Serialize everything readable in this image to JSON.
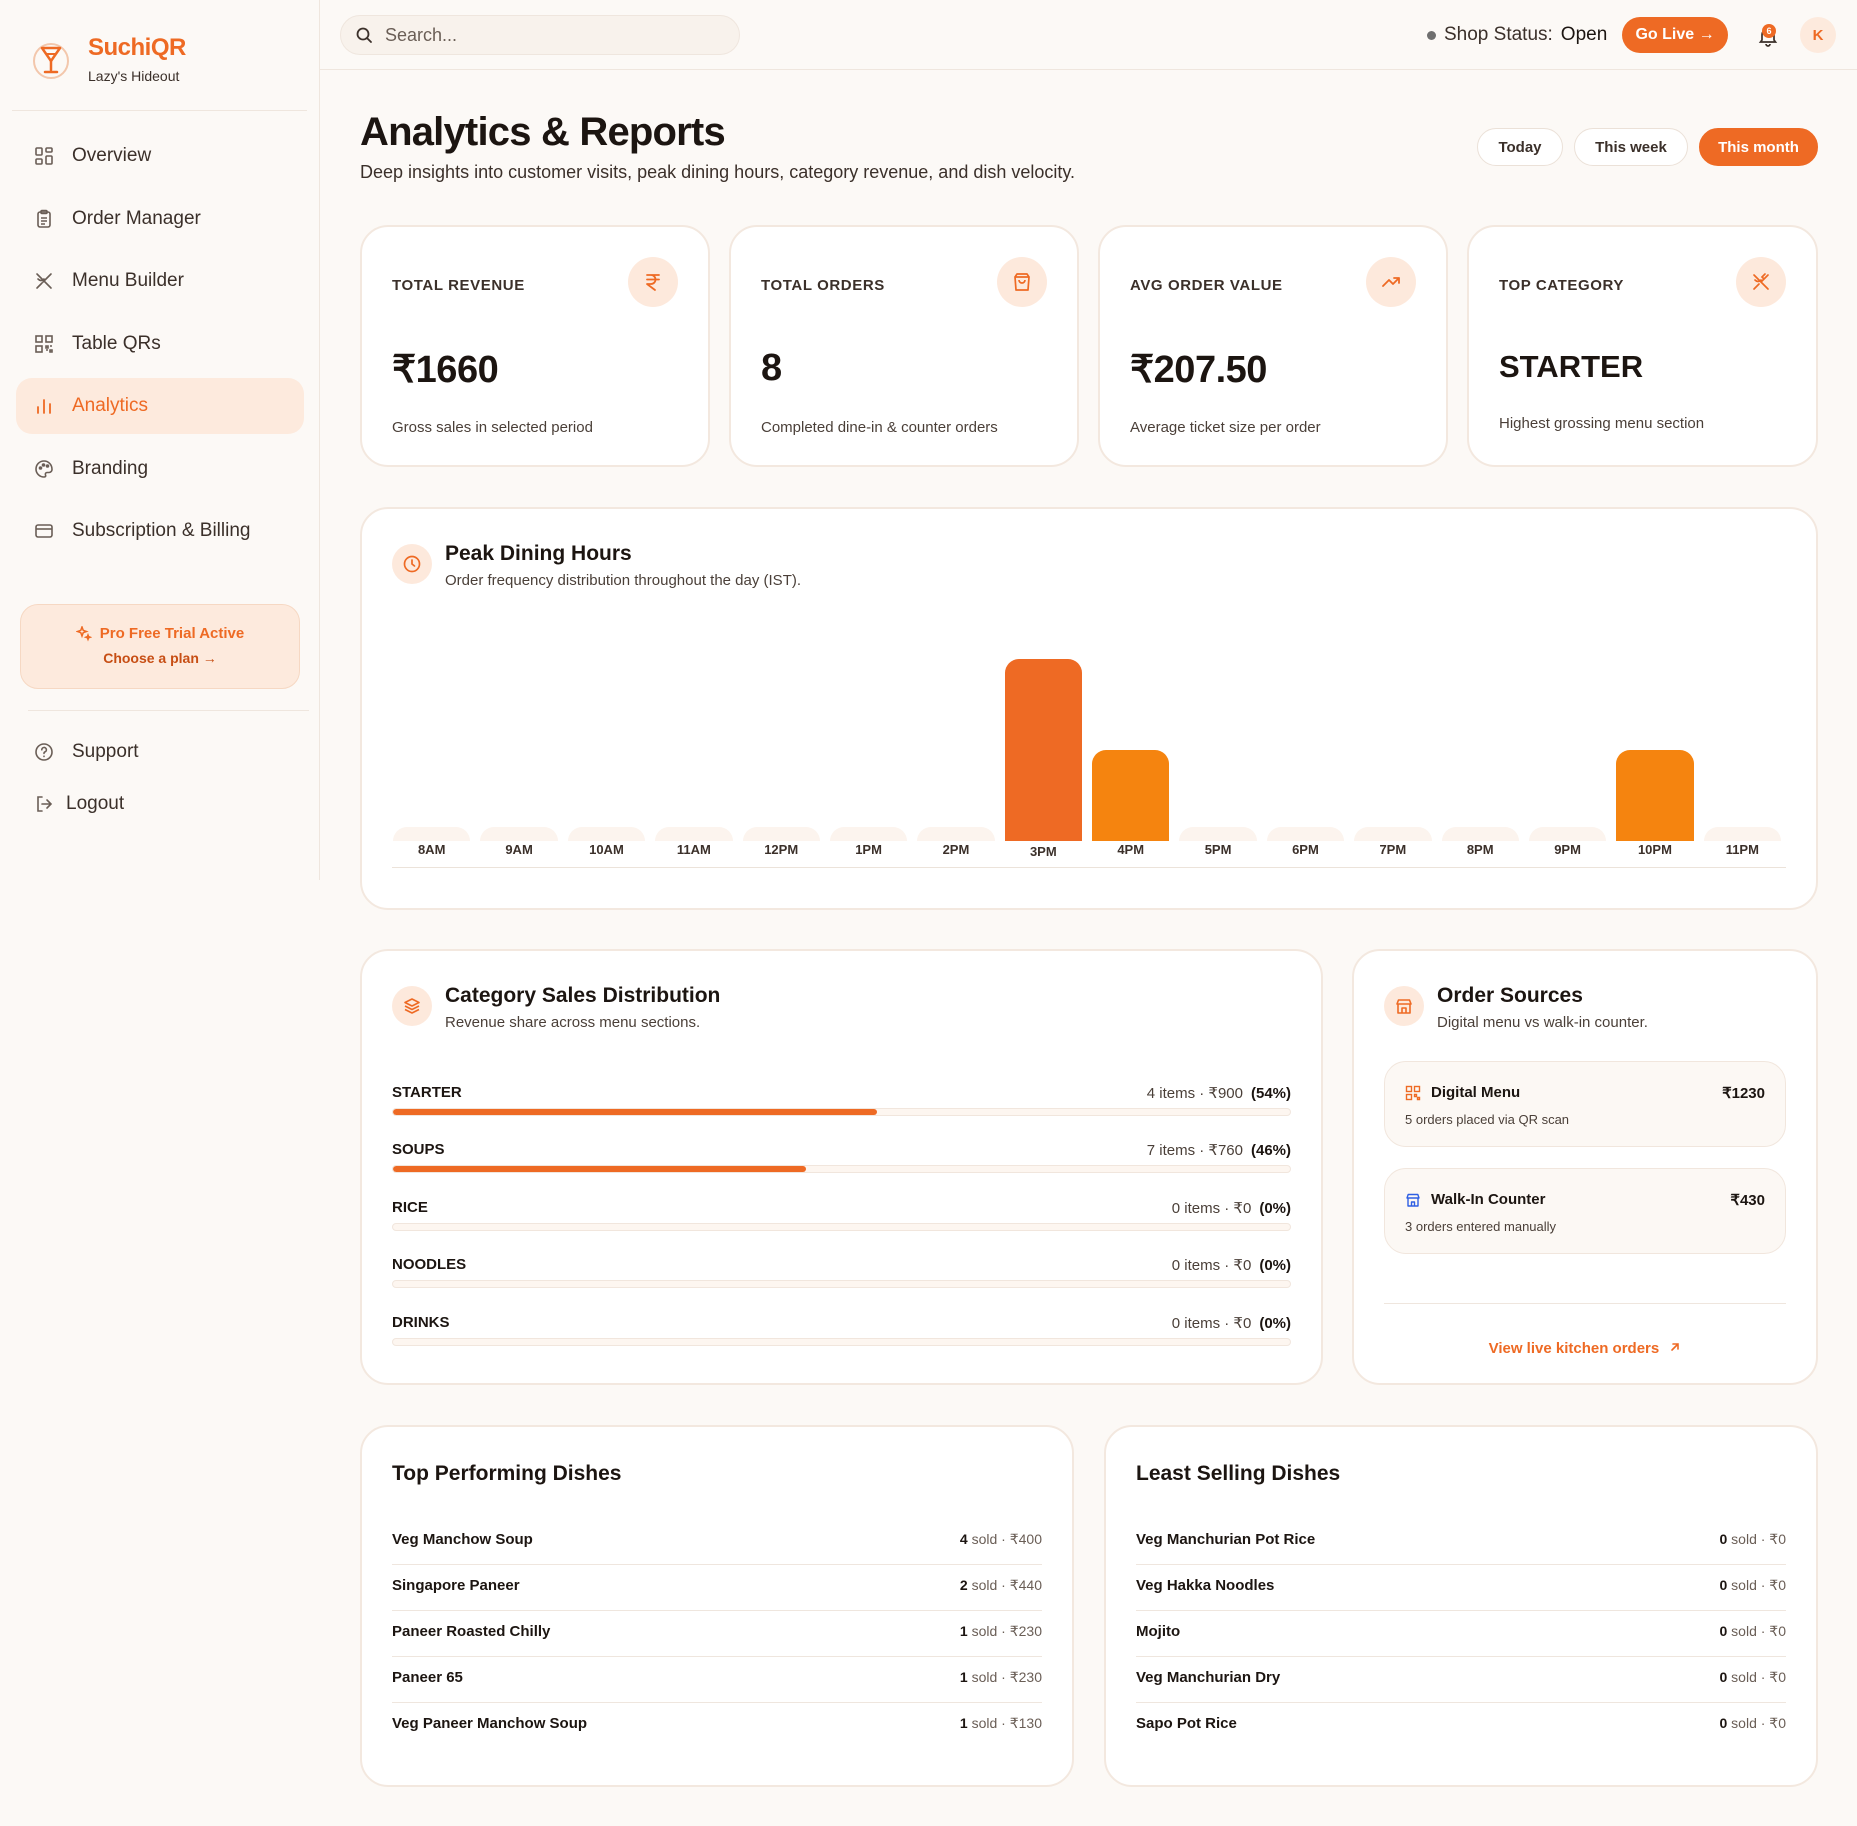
{
  "brand": {
    "name": "SuchiQR",
    "restaurant": "Lazy's Hideout"
  },
  "sidebar": {
    "items": [
      {
        "label": "Overview",
        "icon": "grid-icon"
      },
      {
        "label": "Order Manager",
        "icon": "clipboard-icon"
      },
      {
        "label": "Menu Builder",
        "icon": "utensils-icon"
      },
      {
        "label": "Table QRs",
        "icon": "qr-icon"
      },
      {
        "label": "Analytics",
        "icon": "bar-chart-icon",
        "active": true
      },
      {
        "label": "Branding",
        "icon": "palette-icon"
      },
      {
        "label": "Subscription & Billing",
        "icon": "credit-card-icon"
      }
    ],
    "trial": {
      "title": "Pro Free Trial Active",
      "cta": "Choose a plan →"
    },
    "bottom": [
      {
        "label": "Support",
        "icon": "help-circle-icon"
      },
      {
        "label": "Logout",
        "icon": "logout-icon"
      }
    ]
  },
  "topbar": {
    "search_placeholder": "Search...",
    "shop_status_label": "Shop Status:",
    "shop_status_value": "Open",
    "go_live": "Go Live →",
    "notification_count": "6",
    "avatar_initial": "K"
  },
  "header": {
    "title": "Analytics & Reports",
    "subtitle": "Deep insights into customer visits, peak dining hours, category revenue, and dish velocity.",
    "periods": [
      "Today",
      "This week",
      "This month"
    ],
    "active_period": "This month"
  },
  "stats": [
    {
      "label": "TOTAL REVENUE",
      "value": "₹1660",
      "sub": "Gross sales in selected period",
      "icon": "rupee-icon"
    },
    {
      "label": "TOTAL ORDERS",
      "value": "8",
      "sub": "Completed dine-in & counter orders",
      "icon": "shopping-bag-icon"
    },
    {
      "label": "AVG ORDER VALUE",
      "value": "₹207.50",
      "sub": "Average ticket size per order",
      "icon": "trending-up-icon"
    },
    {
      "label": "TOP CATEGORY",
      "value": "STARTER",
      "sub": "Highest grossing menu section",
      "icon": "utensils-crossed-icon"
    }
  ],
  "peak_hours": {
    "title": "Peak Dining Hours",
    "subtitle": "Order frequency distribution throughout the day (IST).",
    "colors": {
      "peak": "#ee6a24",
      "normal": "#f5840f",
      "empty": "#fcf4ee"
    }
  },
  "chart_data": {
    "type": "bar",
    "categories": [
      "8AM",
      "9AM",
      "10AM",
      "11AM",
      "12PM",
      "1PM",
      "2PM",
      "3PM",
      "4PM",
      "5PM",
      "6PM",
      "7PM",
      "8PM",
      "9PM",
      "10PM",
      "11PM"
    ],
    "values": [
      0,
      0,
      0,
      0,
      0,
      0,
      0,
      4,
      2,
      0,
      0,
      0,
      0,
      0,
      2,
      0
    ],
    "peak_category": "3PM",
    "ylim": [
      0,
      4
    ],
    "grid": false,
    "legend": "none"
  },
  "category_sales": {
    "title": "Category Sales Distribution",
    "subtitle": "Revenue share across menu sections.",
    "rows": [
      {
        "name": "STARTER",
        "meta": "4 items · ₹900",
        "pct_label": "(54%)",
        "pct": 54
      },
      {
        "name": "SOUPS",
        "meta": "7 items · ₹760",
        "pct_label": "(46%)",
        "pct": 46
      },
      {
        "name": "RICE",
        "meta": "0 items · ₹0",
        "pct_label": "(0%)",
        "pct": 0
      },
      {
        "name": "NOODLES",
        "meta": "0 items · ₹0",
        "pct_label": "(0%)",
        "pct": 0
      },
      {
        "name": "DRINKS",
        "meta": "0 items · ₹0",
        "pct_label": "(0%)",
        "pct": 0
      }
    ]
  },
  "order_sources": {
    "title": "Order Sources",
    "subtitle": "Digital menu vs walk-in counter.",
    "items": [
      {
        "name": "Digital Menu",
        "value": "₹1230",
        "sub": "5 orders placed via QR scan",
        "icon": "qr-icon",
        "icon_color": "#ee6a24"
      },
      {
        "name": "Walk-In Counter",
        "value": "₹430",
        "sub": "3 orders entered manually",
        "icon": "store-icon",
        "icon_color": "#2f5fe3"
      }
    ],
    "link": "View live kitchen orders"
  },
  "top_dishes": {
    "title": "Top Performing Dishes",
    "rows": [
      {
        "name": "Veg Manchow Soup",
        "sold": "4",
        "meta": " sold · ₹400"
      },
      {
        "name": "Singapore Paneer",
        "sold": "2",
        "meta": " sold · ₹440"
      },
      {
        "name": "Paneer Roasted Chilly",
        "sold": "1",
        "meta": " sold · ₹230"
      },
      {
        "name": "Paneer 65",
        "sold": "1",
        "meta": " sold · ₹230"
      },
      {
        "name": "Veg Paneer Manchow Soup",
        "sold": "1",
        "meta": " sold · ₹130"
      }
    ]
  },
  "least_dishes": {
    "title": "Least Selling Dishes",
    "rows": [
      {
        "name": "Veg Manchurian Pot Rice",
        "sold": "0",
        "meta": " sold · ₹0"
      },
      {
        "name": "Veg Hakka Noodles",
        "sold": "0",
        "meta": " sold · ₹0"
      },
      {
        "name": "Mojito",
        "sold": "0",
        "meta": " sold · ₹0"
      },
      {
        "name": "Veg Manchurian Dry",
        "sold": "0",
        "meta": " sold · ₹0"
      },
      {
        "name": "Sapo Pot Rice",
        "sold": "0",
        "meta": " sold · ₹0"
      }
    ]
  }
}
